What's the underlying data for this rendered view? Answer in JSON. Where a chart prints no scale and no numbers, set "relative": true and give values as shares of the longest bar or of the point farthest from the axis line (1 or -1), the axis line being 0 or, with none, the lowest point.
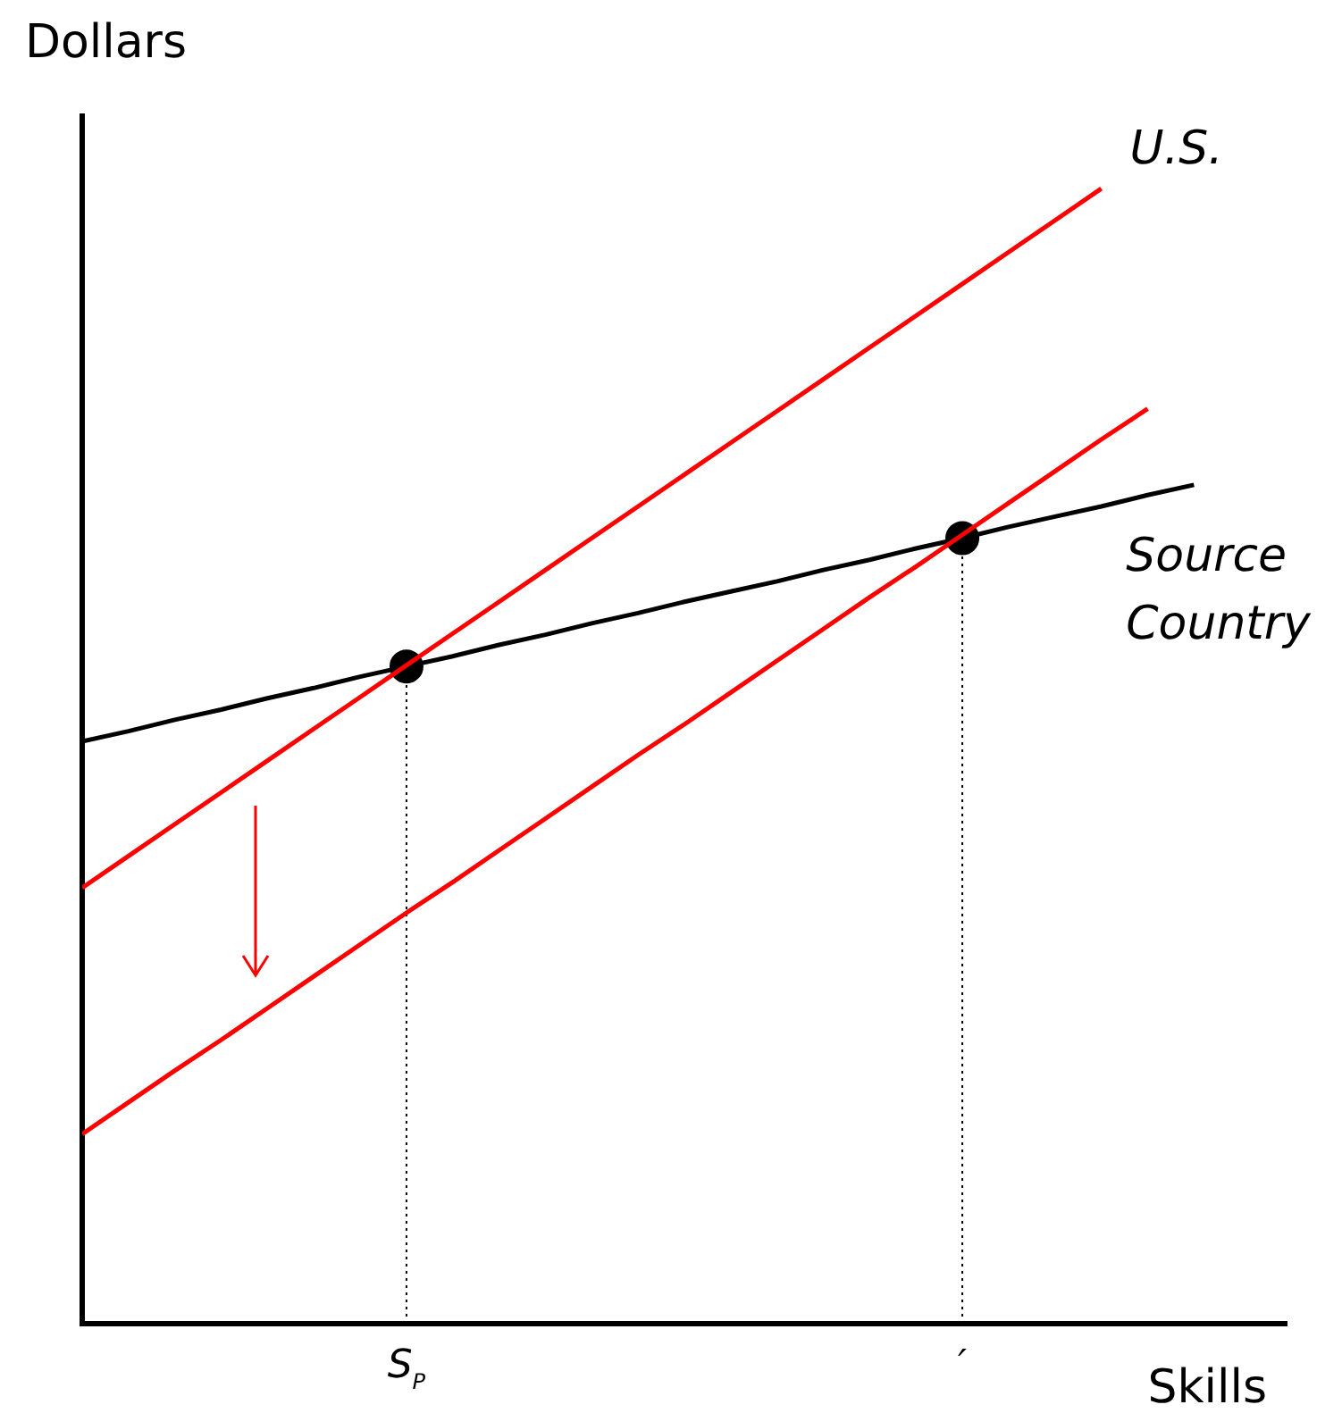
{
  "chart_data": {
    "type": "line",
    "xlabel": "Skills",
    "ylabel": "Dollars",
    "relative": true,
    "grid": false,
    "legend": false,
    "marker": "none",
    "categories": [
      null,
      null,
      null,
      null,
      null,
      null,
      null,
      "S$_{P}$",
      null,
      null,
      null,
      null,
      null,
      null,
      null,
      null,
      null,
      null,
      null,
      "′",
      null,
      null,
      null,
      null,
      null,
      null,
      null
    ],
    "series": [
      {
        "name": "U.S.",
        "color": "#ff0000",
        "values": [
          0.384,
          0.412,
          0.44,
          0.468,
          0.496,
          0.524,
          0.552,
          0.58,
          0.608,
          0.636,
          0.664,
          0.692,
          0.72,
          0.748,
          0.776,
          0.804,
          0.832,
          0.86,
          0.888,
          0.916,
          0.944,
          0.972,
          1,
          null,
          null,
          null,
          null
        ]
      },
      {
        "color": "#ff0000",
        "values": [
          0.167,
          0.195,
          0.223,
          0.25,
          0.278,
          0.306,
          0.334,
          0.362,
          0.389,
          0.417,
          0.445,
          0.473,
          0.501,
          0.528,
          0.556,
          0.584,
          0.612,
          0.64,
          0.667,
          0.695,
          0.723,
          0.751,
          0.779,
          0.806,
          null,
          null,
          null
        ]
      },
      {
        "name": "Source Country",
        "color": "#000000",
        "values": [
          0.513,
          0.522,
          0.532,
          0.541,
          0.551,
          0.56,
          0.57,
          0.579,
          0.588,
          0.598,
          0.607,
          0.617,
          0.626,
          0.636,
          0.645,
          0.654,
          0.664,
          0.673,
          0.683,
          0.692,
          0.702,
          0.711,
          0.72,
          0.73,
          0.739,
          null,
          null
        ]
      },
      {
        "type": "line",
        "color": "#000000",
        "line_style": "dotted",
        "x": [
          "S$_{P}$",
          "S$_{P}$"
        ],
        "values": [
          0,
          0.579
        ]
      },
      {
        "type": "line",
        "color": "#000000",
        "line_style": "dotted",
        "x": [
          "′",
          "′"
        ],
        "values": [
          0,
          0.692
        ]
      },
      {
        "type": "scatter",
        "color": "#000000",
        "marker": "circle",
        "x": [
          "S$_{P}$",
          "′"
        ],
        "values": [
          0.579,
          0.692
        ]
      }
    ]
  }
}
